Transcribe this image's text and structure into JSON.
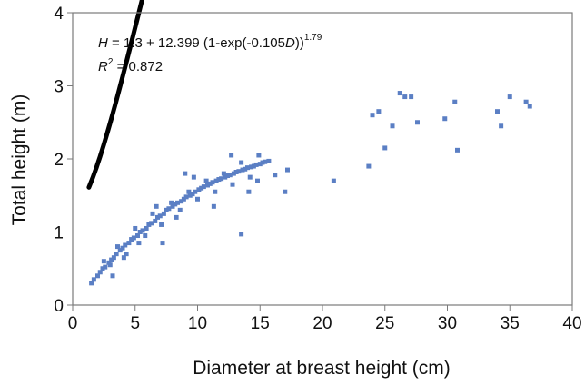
{
  "chart_data": {
    "type": "scatter",
    "title": "",
    "xlabel": "Diameter at breast height (cm)",
    "ylabel": "Total height (m)",
    "xlim": [
      0,
      40
    ],
    "ylim": [
      0,
      4
    ],
    "xticks": [
      "0",
      "5",
      "10",
      "15",
      "20",
      "25",
      "30",
      "35",
      "40"
    ],
    "yticks": [
      "0",
      "1",
      "2",
      "3",
      "4"
    ],
    "grid": false,
    "legend": "none",
    "annotation": {
      "line1_prefix": "H",
      "line1_body": " = 1.3 + 12.399 (1-exp(-0.105",
      "line1_var": "D",
      "line1_close": "))",
      "line1_exponent": "1.79",
      "line2_prefix": "R",
      "line2_exponent": "2",
      "line2_body": " = 0.872"
    },
    "model": {
      "a": 1.3,
      "b": 12.399,
      "c": 0.105,
      "p": 1.79,
      "x_range": [
        1.3,
        37
      ],
      "color": "#000000"
    },
    "marker_color": "#5b7fc4",
    "series": [
      {
        "type": "scatter",
        "x": [
          1.5,
          1.7,
          2.0,
          2.2,
          2.4,
          2.6,
          2.9,
          3.1,
          3.3,
          3.5,
          3.8,
          4.0,
          4.2,
          4.5,
          4.7,
          4.9,
          5.2,
          5.4,
          5.6,
          5.9,
          6.1,
          6.3,
          6.6,
          6.8,
          7.0,
          7.3,
          7.5,
          7.7,
          8.0,
          8.2,
          8.4,
          8.7,
          8.9,
          9.1,
          9.4,
          9.6,
          9.8,
          10.1,
          10.3,
          10.5,
          10.8,
          11.0,
          11.2,
          11.5,
          11.7,
          11.9,
          12.2,
          12.4,
          12.6,
          12.9,
          13.1,
          13.3,
          13.6,
          13.8,
          14.0,
          14.3,
          14.5,
          14.7,
          15.0,
          15.2,
          15.4,
          15.7,
          2.5,
          3.0,
          3.6,
          4.3,
          5.0,
          5.8,
          6.4,
          7.1,
          7.9,
          8.6,
          9.3,
          10.0,
          10.7,
          11.4,
          12.1,
          12.8,
          13.5,
          14.2,
          14.9,
          3.2,
          4.1,
          5.3,
          6.7,
          8.3,
          9.7,
          11.3,
          12.7,
          14.1,
          7.2,
          9.0,
          13.5,
          14.8,
          16.2,
          17.2,
          17.0,
          20.9,
          23.7,
          24.0,
          24.5,
          25.0,
          25.6,
          26.2,
          26.6,
          27.1,
          27.6,
          29.8,
          30.6,
          30.8,
          34.0,
          34.3,
          35.0,
          36.3,
          36.6
        ],
        "y": [
          0.3,
          0.35,
          0.4,
          0.45,
          0.5,
          0.52,
          0.58,
          0.62,
          0.65,
          0.7,
          0.75,
          0.78,
          0.82,
          0.85,
          0.9,
          0.92,
          0.95,
          1.0,
          1.02,
          1.05,
          1.1,
          1.12,
          1.15,
          1.2,
          1.22,
          1.25,
          1.3,
          1.32,
          1.35,
          1.38,
          1.4,
          1.42,
          1.45,
          1.48,
          1.5,
          1.52,
          1.55,
          1.58,
          1.6,
          1.62,
          1.64,
          1.66,
          1.68,
          1.7,
          1.72,
          1.73,
          1.75,
          1.77,
          1.78,
          1.8,
          1.82,
          1.83,
          1.85,
          1.86,
          1.88,
          1.89,
          1.9,
          1.92,
          1.93,
          1.95,
          1.96,
          1.97,
          0.6,
          0.55,
          0.8,
          0.7,
          1.05,
          0.95,
          1.25,
          1.1,
          1.4,
          1.3,
          1.55,
          1.45,
          1.7,
          1.55,
          1.8,
          1.65,
          1.95,
          1.75,
          2.05,
          0.4,
          0.65,
          0.85,
          1.35,
          1.2,
          1.75,
          1.35,
          2.05,
          1.55,
          0.85,
          1.8,
          0.97,
          1.7,
          1.78,
          1.85,
          1.55,
          1.7,
          1.9,
          2.6,
          2.65,
          2.15,
          2.45,
          2.9,
          2.85,
          2.85,
          2.5,
          2.55,
          2.78,
          2.12,
          2.65,
          2.45,
          2.85,
          2.78,
          2.72
        ]
      }
    ]
  }
}
